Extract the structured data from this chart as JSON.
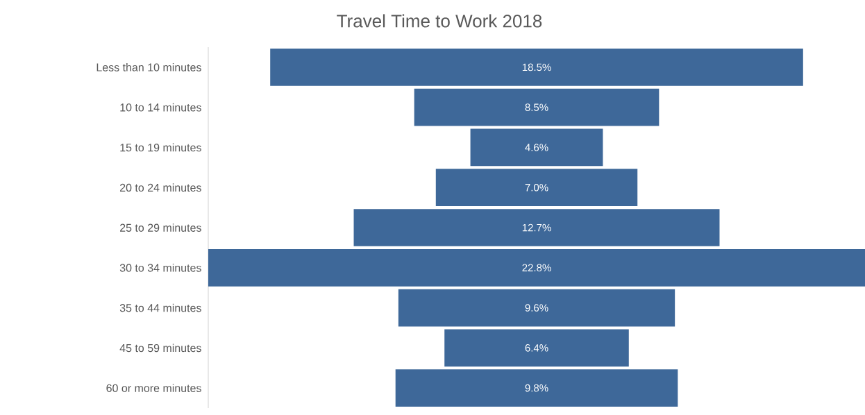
{
  "chart_data": {
    "type": "other",
    "title": "Travel Time to Work 2018",
    "categories": [
      "Less than 10 minutes",
      "10 to 14 minutes",
      "15 to 19 minutes",
      "20 to 24 minutes",
      "25 to 29 minutes",
      "30 to 34 minutes",
      "35 to 44 minutes",
      "45 to 59 minutes",
      "60 or more minutes"
    ],
    "values": [
      18.5,
      8.5,
      4.6,
      7.0,
      12.7,
      22.8,
      9.6,
      6.4,
      9.8
    ],
    "value_labels": [
      "18.5%",
      "8.5%",
      "4.6%",
      "7.0%",
      "12.7%",
      "22.8%",
      "9.6%",
      "6.4%",
      "9.8%"
    ],
    "color": "#3e6899"
  }
}
